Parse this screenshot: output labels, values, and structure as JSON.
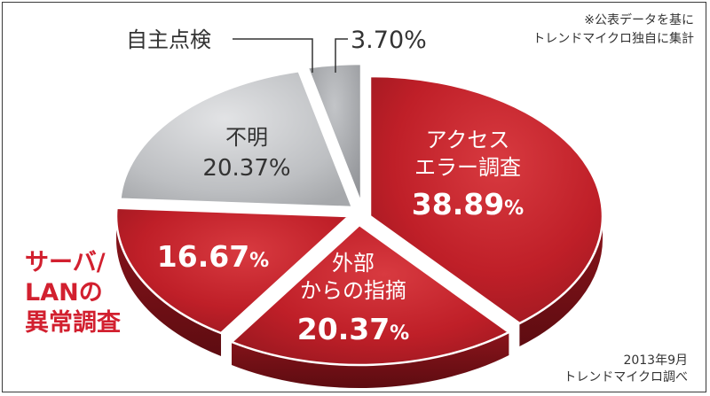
{
  "chart_data": {
    "type": "pie",
    "slices": [
      {
        "label_lines": [
          "アクセス",
          "エラー調査"
        ],
        "value_text": "38.89",
        "value": 38.89,
        "color": "#c8232c"
      },
      {
        "label_lines": [
          "外部",
          "からの指摘"
        ],
        "value_text": "20.37",
        "value": 20.37,
        "color": "#c8232c"
      },
      {
        "label_lines": [],
        "value_text": "16.67",
        "value": 16.67,
        "color": "#c8232c"
      },
      {
        "label_lines": [
          "不明"
        ],
        "value_text": "20.37%",
        "value": 20.37,
        "color": "#b7b8bb"
      },
      {
        "label_lines": [],
        "value_text": "",
        "value": 3.7,
        "color": "#a4a6a9"
      }
    ],
    "percent_sign": "%",
    "side_label_lines": [
      "サーバ/",
      "LANの",
      "異常調査"
    ],
    "callout_label": "自主点検",
    "callout_value": "3.70%",
    "note_lines": [
      "※公表データを基に",
      "トレンドマイクロ独自に集計"
    ],
    "credit_lines": [
      "2013年9月",
      "トレンドマイクロ調べ"
    ],
    "colors": {
      "red": "#c8232c",
      "dark_red": "#7e1016",
      "gray": "#b7b8bb",
      "dark_gray": "#6f7174",
      "accent_text": "#d2202f"
    }
  }
}
